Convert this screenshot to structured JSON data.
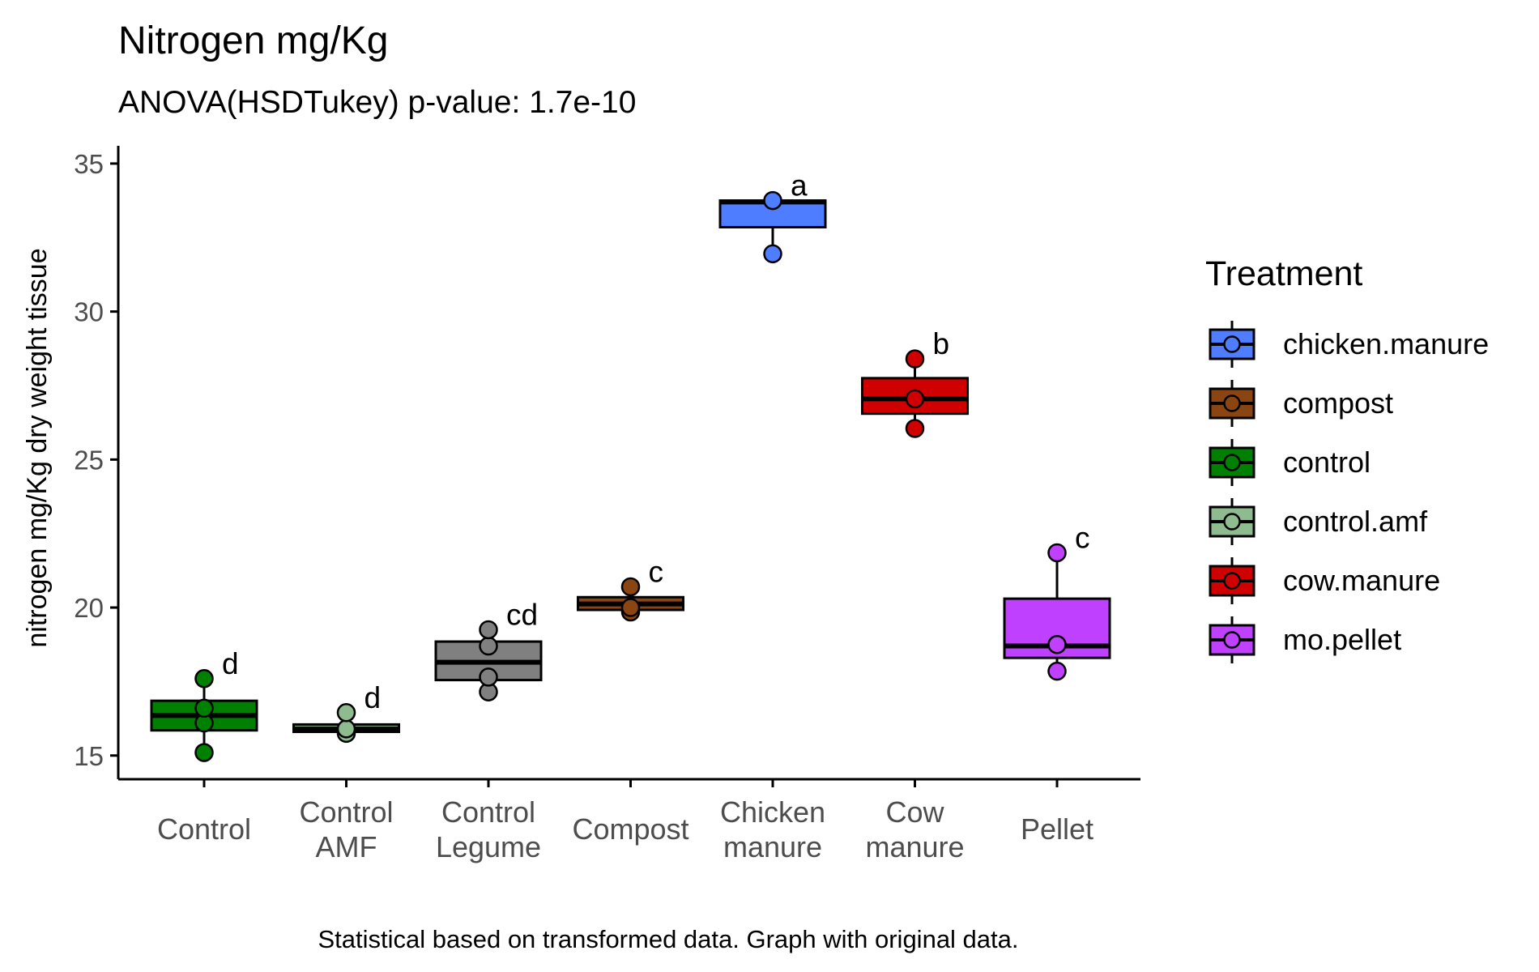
{
  "chart_data": {
    "type": "box",
    "title": "Nitrogen mg/Kg",
    "subtitle": "ANOVA(HSDTukey) p-value: 1.7e-10",
    "caption": "Statistical based on transformed data. Graph with original data.",
    "ylabel": "nitrogen mg/Kg dry weight tissue",
    "xlabel": "",
    "ylim": [
      14.2,
      35.6
    ],
    "yticks": [
      15,
      20,
      25,
      30,
      35
    ],
    "grid": false,
    "legend": {
      "title": "Treatment",
      "position": "right",
      "entries": [
        "chicken.manure",
        "compost",
        "control",
        "control.amf",
        "cow.manure",
        "mo.pellet"
      ]
    },
    "colors": {
      "chicken.manure": "#4f7dff",
      "compost": "#8b4513",
      "control": "#008000",
      "control.amf": "#8fbc8f",
      "cow.manure": "#d00000",
      "mo.pellet": "#bf40ff"
    },
    "categories": [
      {
        "label": [
          "Control"
        ],
        "series": "control",
        "letter": "d",
        "box": {
          "lower_whisker": 15.1,
          "q1": 15.85,
          "median": 16.35,
          "q3": 16.85,
          "upper_whisker": 17.6
        },
        "points": [
          15.1,
          16.1,
          16.6,
          17.6
        ]
      },
      {
        "label": [
          "Control",
          "AMF"
        ],
        "series": "control.amf",
        "letter": "d",
        "box": {
          "lower_whisker": 15.75,
          "q1": 15.8,
          "median": 15.9,
          "q3": 16.05,
          "upper_whisker": 16.45
        },
        "points": [
          15.75,
          15.9,
          16.45
        ]
      },
      {
        "label": [
          "Control",
          "Legume"
        ],
        "series": "control.legume",
        "letter": "cd",
        "box": {
          "lower_whisker": 17.15,
          "q1": 17.55,
          "median": 18.15,
          "q3": 18.85,
          "upper_whisker": 19.25
        },
        "points": [
          17.15,
          17.65,
          18.7,
          19.25
        ]
      },
      {
        "label": [
          "Compost"
        ],
        "series": "compost",
        "letter": "c",
        "box": {
          "lower_whisker": 19.85,
          "q1": 19.92,
          "median": 20.12,
          "q3": 20.35,
          "upper_whisker": 20.7
        },
        "points": [
          19.85,
          20.0,
          20.7
        ]
      },
      {
        "label": [
          "Chicken",
          "manure"
        ],
        "series": "chicken.manure",
        "letter": "a",
        "box": {
          "lower_whisker": 31.95,
          "q1": 32.85,
          "median": 33.7,
          "q3": 33.75,
          "upper_whisker": 33.75
        },
        "points": [
          31.95,
          33.75
        ]
      },
      {
        "label": [
          "Cow",
          "manure"
        ],
        "series": "cow.manure",
        "letter": "b",
        "box": {
          "lower_whisker": 26.05,
          "q1": 26.55,
          "median": 27.05,
          "q3": 27.75,
          "upper_whisker": 28.4
        },
        "points": [
          26.05,
          27.05,
          28.4
        ]
      },
      {
        "label": [
          "Pellet"
        ],
        "series": "mo.pellet",
        "letter": "c",
        "box": {
          "lower_whisker": 17.85,
          "q1": 18.3,
          "median": 18.7,
          "q3": 20.3,
          "upper_whisker": 21.85
        },
        "points": [
          17.85,
          18.75,
          21.85
        ]
      }
    ]
  },
  "extra_colors": {
    "control.legume": "#808080"
  }
}
